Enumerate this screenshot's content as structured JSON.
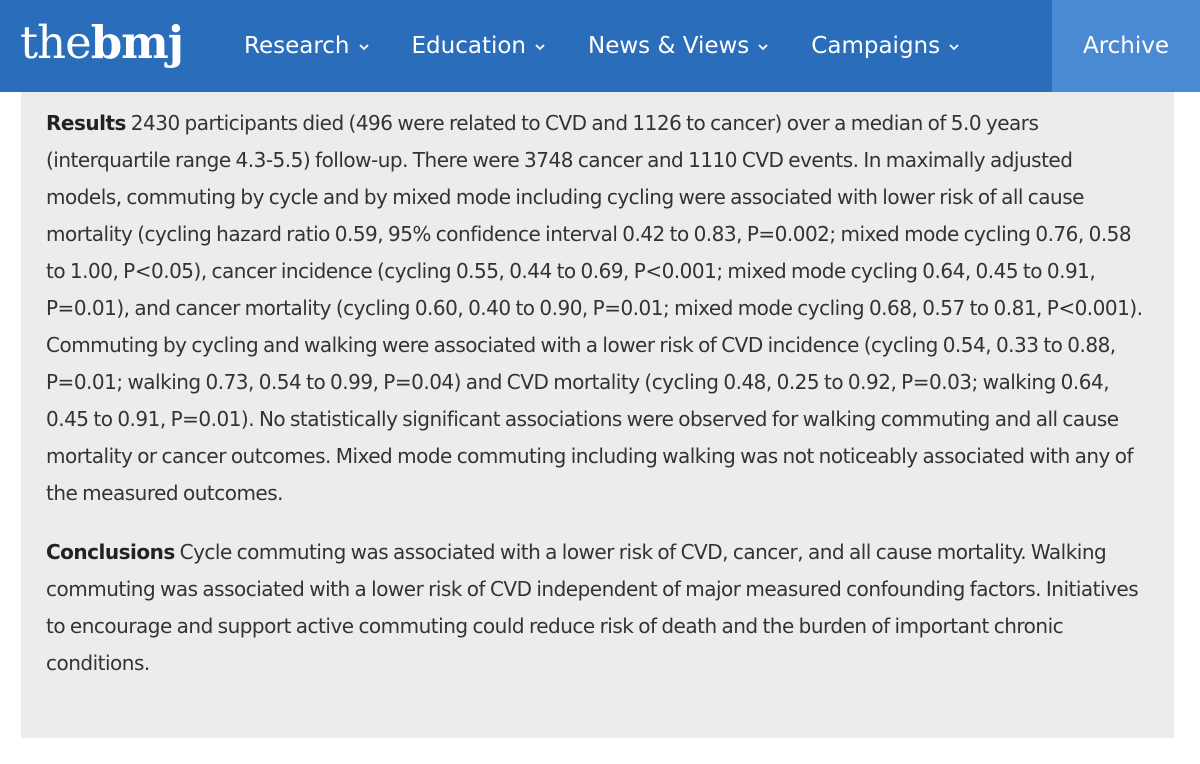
{
  "header": {
    "logo_the": "the",
    "logo_bmj": "bmj",
    "nav": [
      {
        "label": "Research"
      },
      {
        "label": "Education"
      },
      {
        "label": "News & Views"
      },
      {
        "label": "Campaigns"
      }
    ],
    "archive_label": "Archive"
  },
  "colors": {
    "nav_bar": "#2a6ebb",
    "archive_tab": "#4a8ad2",
    "panel": "#ececec"
  },
  "icons": {
    "nav_dropdown": "chevron-down-icon"
  },
  "abstract": {
    "results_heading": "Results",
    "results_text": "2430 participants died (496 were related to CVD and 1126 to cancer) over a median of 5.0 years (interquartile range 4.3-5.5) follow-up. There were 3748 cancer and 1110 CVD events. In maximally adjusted models, commuting by cycle and by mixed mode including cycling were associated with lower risk of all cause mortality (cycling hazard ratio 0.59, 95% confidence interval 0.42 to 0.83, P=0.002; mixed mode cycling 0.76, 0.58 to 1.00, P<0.05), cancer incidence (cycling 0.55, 0.44 to 0.69, P<0.001; mixed mode cycling 0.64, 0.45 to 0.91, P=0.01), and cancer mortality (cycling 0.60, 0.40 to 0.90, P=0.01; mixed mode cycling 0.68, 0.57 to 0.81, P<0.001). Commuting by cycling and walking were associated with a lower risk of CVD incidence (cycling 0.54, 0.33 to 0.88, P=0.01; walking 0.73, 0.54 to 0.99, P=0.04) and CVD mortality (cycling 0.48, 0.25 to 0.92, P=0.03; walking 0.64, 0.45 to 0.91, P=0.01). No statistically significant associations were observed for walking commuting and all cause mortality or cancer outcomes. Mixed mode commuting including walking was not noticeably associated with any of the measured outcomes.",
    "conclusions_heading": "Conclusions",
    "conclusions_text": "Cycle commuting was associated with a lower risk of CVD, cancer, and all cause mortality. Walking commuting was associated with a lower risk of CVD independent of major measured confounding factors. Initiatives to encourage and support active commuting could reduce risk of death and the burden of important chronic conditions."
  }
}
